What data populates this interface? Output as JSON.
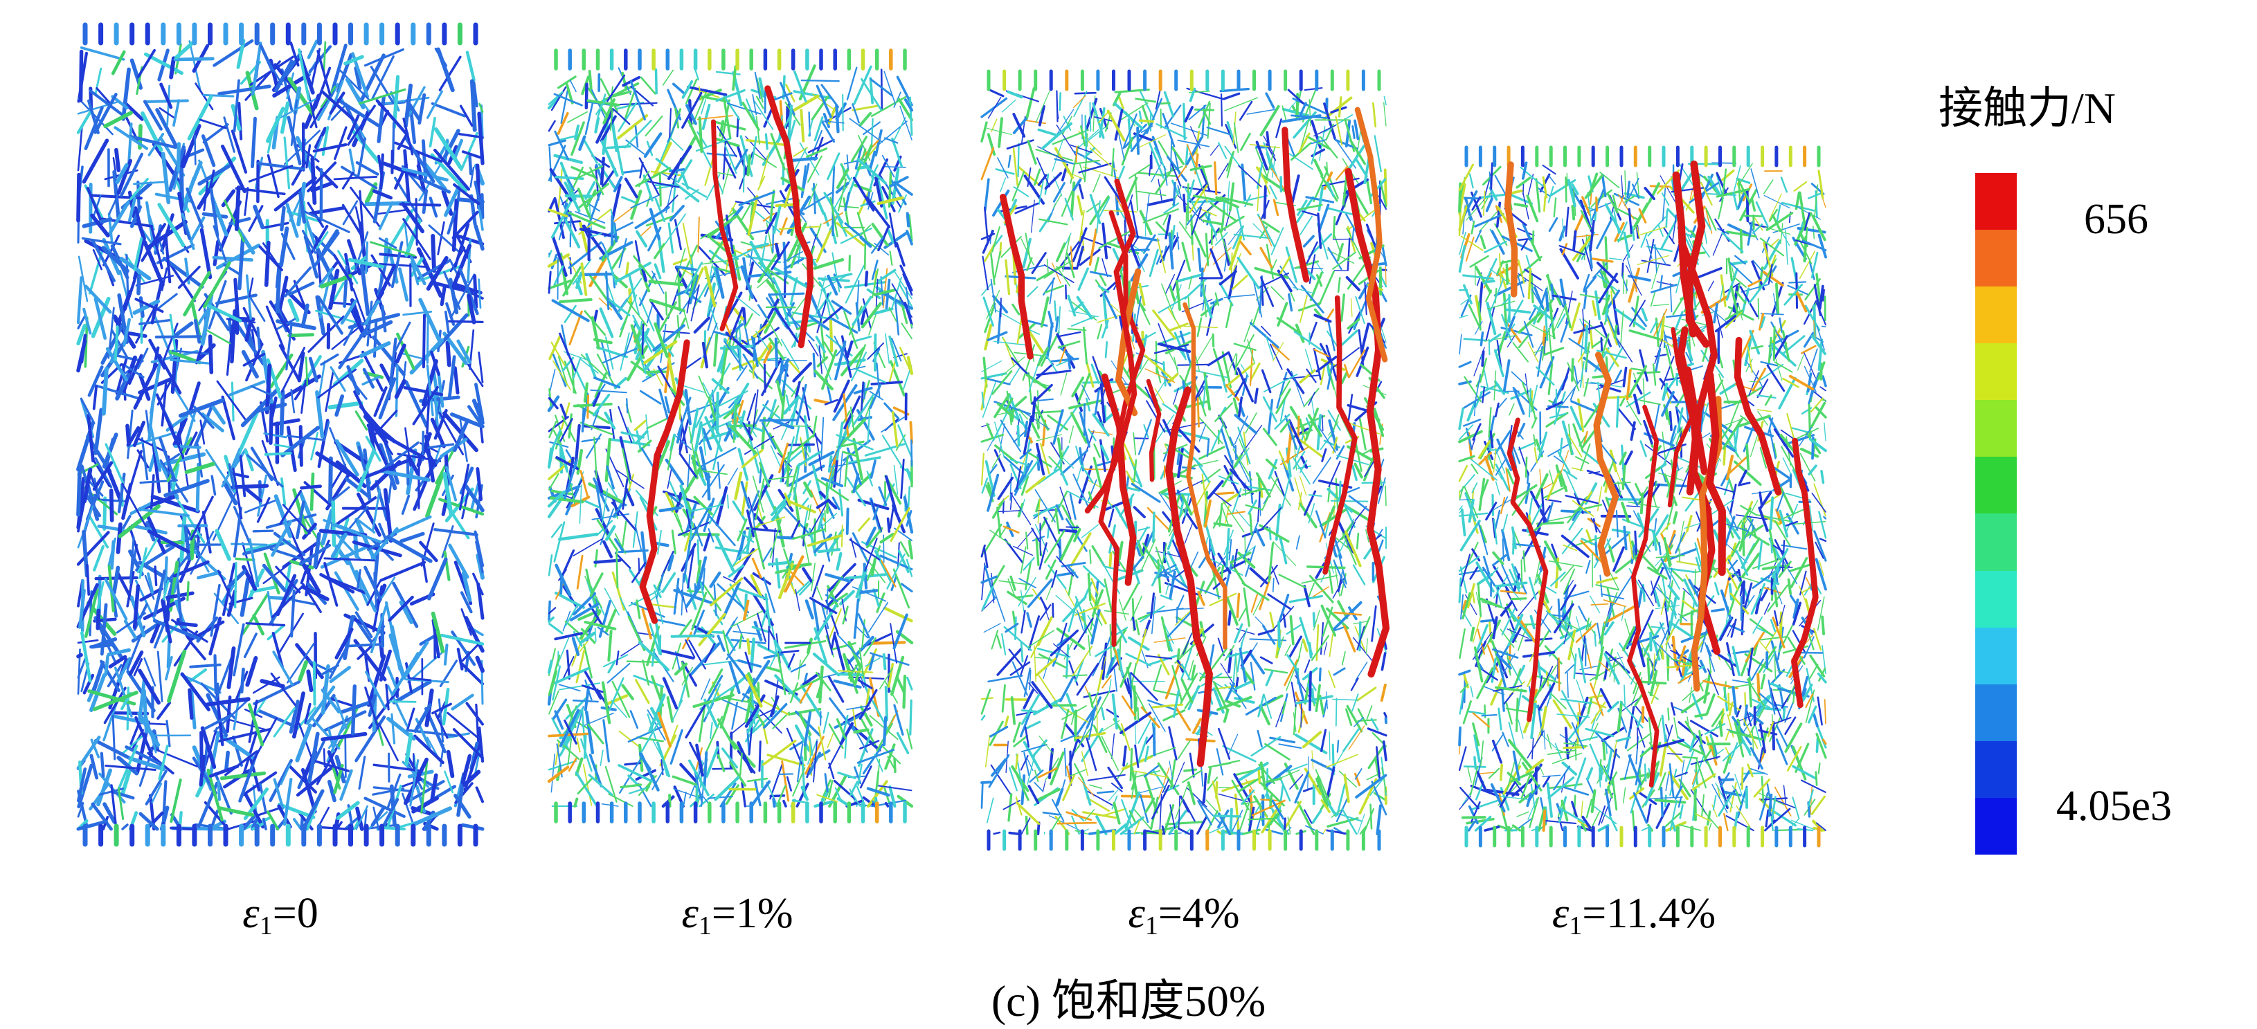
{
  "colorbar": {
    "title": "接触力/N",
    "max_label": "656",
    "min_label": "4.05e3",
    "colors": [
      "#e60f0f",
      "#f26a1e",
      "#f7be14",
      "#cfe81e",
      "#8fe82a",
      "#2fd438",
      "#35e080",
      "#2ee8c4",
      "#2fc4f0",
      "#1f84e6",
      "#0f3ce0",
      "#0b14e8"
    ]
  },
  "panels": [
    {
      "strain_value": "0",
      "caption_symbol": "ε",
      "caption_sub": "1",
      "caption_eq": "="
    },
    {
      "strain_value": "1%",
      "caption_symbol": "ε",
      "caption_sub": "1",
      "caption_eq": "="
    },
    {
      "strain_value": "4%",
      "caption_symbol": "ε",
      "caption_sub": "1",
      "caption_eq": "="
    },
    {
      "strain_value": "11.4%",
      "caption_symbol": "ε",
      "caption_sub": "1",
      "caption_eq": "="
    }
  ],
  "figure_caption": "(c) 饱和度50%"
}
